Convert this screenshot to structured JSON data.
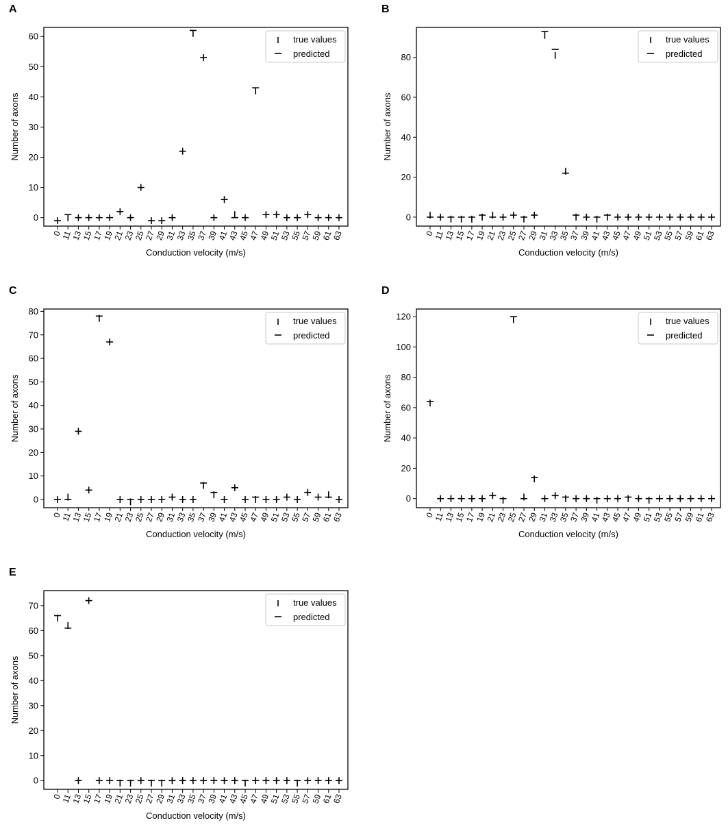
{
  "legend_labels": {
    "true": "true values",
    "predicted": "predicted"
  },
  "chart_data": [
    {
      "panel": "A",
      "type": "scatter",
      "marker_true": "vertical-tick",
      "marker_predicted": "horizontal-tick",
      "xlabel": "Conduction velocity (m/s)",
      "ylabel": "Number of axons",
      "categories": [
        "0",
        "11",
        "13",
        "15",
        "17",
        "19",
        "21",
        "23",
        "25",
        "27",
        "29",
        "31",
        "33",
        "35",
        "37",
        "39",
        "41",
        "43",
        "45",
        "47",
        "49",
        "51",
        "53",
        "55",
        "57",
        "59",
        "61",
        "63"
      ],
      "ylim": [
        -2.8,
        63
      ],
      "yticks": [
        0,
        10,
        20,
        30,
        40,
        50,
        60
      ],
      "legend": "top-right",
      "grid": false,
      "series": [
        {
          "name": "true values",
          "values": [
            -1,
            0,
            0,
            0,
            0,
            0,
            2,
            0,
            10,
            -1,
            -1,
            0,
            22,
            61,
            53,
            0,
            6,
            1,
            0,
            42,
            1,
            1,
            0,
            0,
            1,
            0,
            0,
            0
          ]
        },
        {
          "name": "predicted",
          "values": [
            -1,
            1,
            0,
            0,
            0,
            0,
            2,
            0,
            10,
            -1,
            -1,
            0,
            22,
            62,
            53,
            0,
            6,
            0,
            0,
            43,
            1,
            1,
            0,
            0,
            1,
            0,
            0,
            0
          ]
        }
      ]
    },
    {
      "panel": "B",
      "type": "scatter",
      "marker_true": "vertical-tick",
      "marker_predicted": "horizontal-tick",
      "xlabel": "Conduction velocity (m/s)",
      "ylabel": "Number of axons",
      "categories": [
        "0",
        "11",
        "13",
        "15",
        "17",
        "19",
        "21",
        "23",
        "25",
        "27",
        "29",
        "31",
        "33",
        "35",
        "37",
        "39",
        "41",
        "43",
        "45",
        "47",
        "49",
        "51",
        "53",
        "55",
        "57",
        "59",
        "61",
        "63"
      ],
      "ylim": [
        -4.5,
        95
      ],
      "yticks": [
        0,
        20,
        40,
        60,
        80
      ],
      "legend": "top-right",
      "grid": false,
      "series": [
        {
          "name": "true values",
          "values": [
            1,
            0,
            -1,
            -1,
            -1,
            0,
            1,
            0,
            1,
            -1,
            1,
            91,
            81,
            23,
            0,
            0,
            -1,
            0,
            0,
            0,
            0,
            0,
            0,
            0,
            0,
            0,
            0,
            0
          ]
        },
        {
          "name": "predicted",
          "values": [
            0,
            0,
            0,
            0,
            0,
            1,
            0,
            0,
            1,
            0,
            1,
            93,
            84,
            22,
            1,
            0,
            0,
            1,
            0,
            0,
            0,
            0,
            0,
            0,
            0,
            0,
            0,
            0
          ]
        }
      ]
    },
    {
      "panel": "C",
      "type": "scatter",
      "marker_true": "vertical-tick",
      "marker_predicted": "horizontal-tick",
      "xlabel": "Conduction velocity (m/s)",
      "ylabel": "Number of axons",
      "categories": [
        "0",
        "11",
        "13",
        "15",
        "17",
        "19",
        "21",
        "23",
        "25",
        "27",
        "29",
        "31",
        "33",
        "35",
        "37",
        "39",
        "41",
        "43",
        "45",
        "47",
        "49",
        "51",
        "53",
        "55",
        "57",
        "59",
        "61",
        "63"
      ],
      "ylim": [
        -3.5,
        81
      ],
      "yticks": [
        0,
        10,
        20,
        30,
        40,
        50,
        60,
        70,
        80
      ],
      "legend": "top-right",
      "grid": false,
      "series": [
        {
          "name": "true values",
          "values": [
            0,
            1,
            29,
            4,
            77,
            67,
            0,
            -1,
            0,
            0,
            0,
            1,
            0,
            0,
            6,
            2,
            0,
            5,
            0,
            0,
            0,
            0,
            1,
            0,
            3,
            1,
            2,
            0
          ]
        },
        {
          "name": "predicted",
          "values": [
            0,
            0,
            29,
            4,
            78,
            67,
            0,
            0,
            0,
            0,
            0,
            1,
            0,
            0,
            7,
            3,
            0,
            5,
            0,
            1,
            0,
            0,
            1,
            0,
            3,
            1,
            1,
            0
          ]
        }
      ]
    },
    {
      "panel": "D",
      "type": "scatter",
      "marker_true": "vertical-tick",
      "marker_predicted": "horizontal-tick",
      "xlabel": "Conduction velocity (m/s)",
      "ylabel": "Number of axons",
      "categories": [
        "0",
        "11",
        "13",
        "15",
        "17",
        "19",
        "21",
        "23",
        "25",
        "27",
        "29",
        "31",
        "33",
        "35",
        "37",
        "39",
        "41",
        "43",
        "45",
        "47",
        "49",
        "51",
        "53",
        "55",
        "57",
        "59",
        "61",
        "63"
      ],
      "ylim": [
        -6,
        125
      ],
      "yticks": [
        0,
        20,
        40,
        60,
        80,
        100,
        120
      ],
      "legend": "top-right",
      "grid": false,
      "series": [
        {
          "name": "true values",
          "values": [
            63,
            0,
            0,
            0,
            0,
            0,
            2,
            -1,
            118,
            1,
            13,
            0,
            2,
            0,
            0,
            0,
            -1,
            0,
            0,
            0,
            0,
            -1,
            0,
            0,
            0,
            0,
            0,
            0
          ]
        },
        {
          "name": "predicted",
          "values": [
            64,
            0,
            0,
            0,
            0,
            0,
            2,
            0,
            120,
            0,
            14,
            0,
            2,
            1,
            0,
            0,
            0,
            0,
            0,
            1,
            0,
            0,
            0,
            0,
            0,
            0,
            0,
            0
          ]
        }
      ]
    },
    {
      "panel": "E",
      "type": "scatter",
      "marker_true": "vertical-tick",
      "marker_predicted": "horizontal-tick",
      "xlabel": "Conduction velocity (m/s)",
      "ylabel": "Number of axons",
      "categories": [
        "0",
        "11",
        "13",
        "15",
        "17",
        "19",
        "21",
        "23",
        "25",
        "27",
        "29",
        "31",
        "33",
        "35",
        "37",
        "39",
        "41",
        "43",
        "45",
        "47",
        "49",
        "51",
        "53",
        "55",
        "57",
        "59",
        "61",
        "63"
      ],
      "ylim": [
        -3.5,
        76
      ],
      "yticks": [
        0,
        10,
        20,
        30,
        40,
        50,
        60,
        70
      ],
      "legend": "top-right",
      "grid": false,
      "series": [
        {
          "name": "true values",
          "values": [
            65,
            62,
            0,
            72,
            0,
            0,
            -1,
            -1,
            0,
            -1,
            -1,
            0,
            0,
            0,
            0,
            0,
            0,
            0,
            -1,
            0,
            0,
            0,
            0,
            -1,
            0,
            0,
            0,
            0
          ]
        },
        {
          "name": "predicted",
          "values": [
            66,
            61,
            0,
            72,
            0,
            0,
            0,
            0,
            0,
            0,
            0,
            0,
            0,
            0,
            0,
            0,
            0,
            0,
            0,
            0,
            0,
            0,
            0,
            0,
            0,
            0,
            0,
            0
          ]
        }
      ]
    }
  ]
}
